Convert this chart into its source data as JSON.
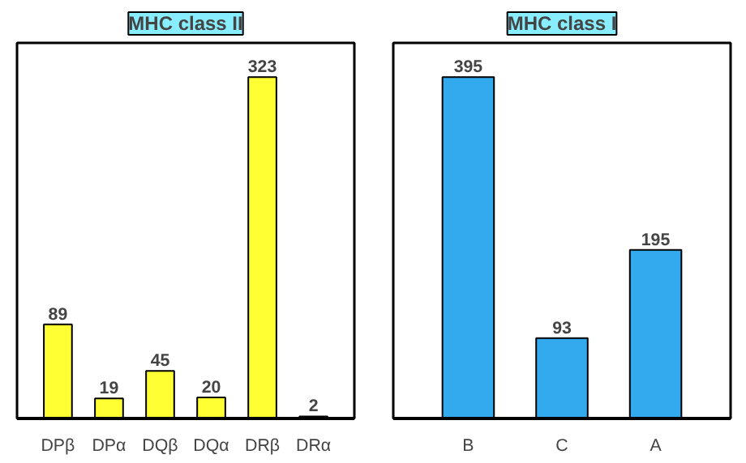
{
  "chart_data": [
    {
      "type": "bar",
      "title": "MHC class II",
      "categories": [
        "DPβ",
        "DPα",
        "DQβ",
        "DQα",
        "DRβ",
        "DRα"
      ],
      "values": [
        89,
        19,
        45,
        20,
        323,
        2
      ],
      "color": "#ffff33",
      "data_labels": true
    },
    {
      "type": "bar",
      "title": "MHC class I",
      "categories": [
        "B",
        "C",
        "A"
      ],
      "values": [
        395,
        93,
        195
      ],
      "color": "#33aaee",
      "data_labels": true
    }
  ]
}
